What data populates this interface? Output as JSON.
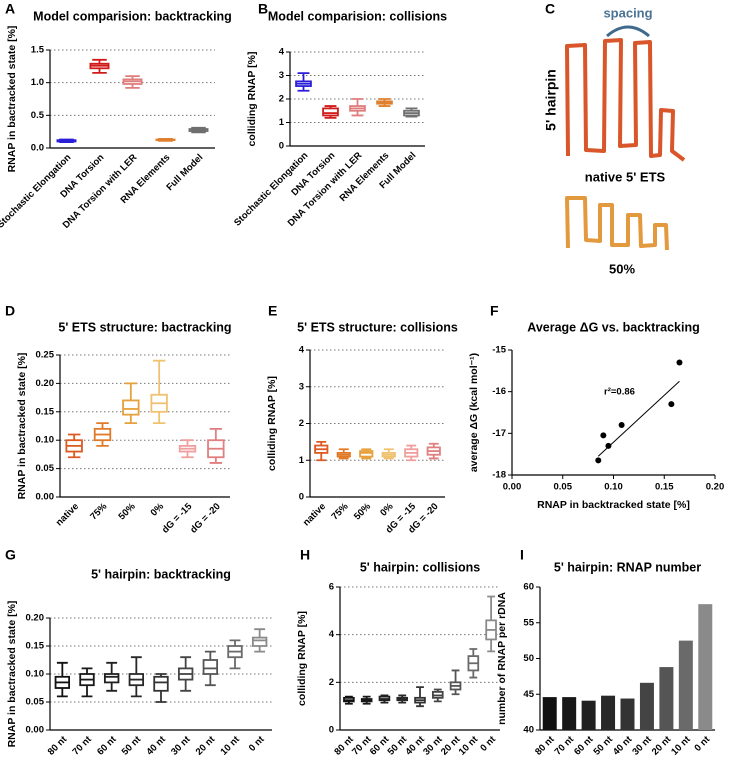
{
  "chart_data": [
    {
      "type": "box",
      "panel": "A",
      "title": "Model comparision: backtracking",
      "y_label": "RNAP in bactracked state [%]",
      "categories": [
        "Stochastic Elongation",
        "DNA Torsion",
        "DNA Torsion with LER",
        "RNA Elements",
        "Full Model"
      ],
      "colors": [
        "#2b1ed8",
        "#d11b1b",
        "#e07d7d",
        "#e0802e",
        "#6f6f6f"
      ],
      "boxes": [
        {
          "min": 0.09,
          "q1": 0.1,
          "median": 0.11,
          "q3": 0.12,
          "max": 0.13
        },
        {
          "min": 1.15,
          "q1": 1.22,
          "median": 1.26,
          "q3": 1.29,
          "max": 1.35
        },
        {
          "min": 0.92,
          "q1": 0.98,
          "median": 1.02,
          "q3": 1.05,
          "max": 1.1
        },
        {
          "min": 0.11,
          "q1": 0.12,
          "median": 0.12,
          "q3": 0.13,
          "max": 0.14
        },
        {
          "min": 0.24,
          "q1": 0.26,
          "median": 0.28,
          "q3": 0.29,
          "max": 0.31
        }
      ],
      "ylim": [
        0,
        1.5
      ],
      "yticks": [
        {
          "value": 0,
          "label": "0.0"
        },
        0.5,
        {
          "value": 1,
          "label": "1.0"
        },
        1.5
      ],
      "grid": true
    },
    {
      "type": "box",
      "panel": "B",
      "title": "Model comparision: collisions",
      "y_label": "colliding RNAP [%]",
      "categories": [
        "Stochastic Elongation",
        "DNA Torsion",
        "DNA Torsion with LER",
        "RNA Elements",
        "Full Model"
      ],
      "colors": [
        "#2b1ed8",
        "#d11b1b",
        "#e07d7d",
        "#e0802e",
        "#6f6f6f"
      ],
      "boxes": [
        {
          "min": 2.35,
          "q1": 2.55,
          "median": 2.65,
          "q3": 2.75,
          "max": 3.1
        },
        {
          "min": 1.2,
          "q1": 1.3,
          "median": 1.4,
          "q3": 1.6,
          "max": 1.7
        },
        {
          "min": 1.3,
          "q1": 1.5,
          "median": 1.6,
          "q3": 1.7,
          "max": 2.0
        },
        {
          "min": 1.7,
          "q1": 1.8,
          "median": 1.85,
          "q3": 1.9,
          "max": 2.0
        },
        {
          "min": 1.25,
          "q1": 1.3,
          "median": 1.4,
          "q3": 1.5,
          "max": 1.6
        }
      ],
      "ylim": [
        0,
        4
      ],
      "yticks": [
        0,
        1,
        2,
        3,
        4
      ],
      "grid": true
    },
    {
      "type": "diagram",
      "panel": "C",
      "spacing_label": "spacing",
      "hairpin_label": "5' hairpin",
      "native_label": "native 5' ETS",
      "variant_label": "50%"
    },
    {
      "type": "box",
      "panel": "D",
      "title": "5' ETS structure: bactracking",
      "y_label": "RNAP in bactracked state [%]",
      "categories": [
        "native",
        "75%",
        "50%",
        "0%",
        "dG = -15",
        "dG = -20"
      ],
      "colors": [
        "#dd5a22",
        "#e07a28",
        "#e6a03c",
        "#efc272",
        "#f09e9e",
        "#e07f7f"
      ],
      "boxes": [
        {
          "min": 0.07,
          "q1": 0.08,
          "median": 0.09,
          "q3": 0.1,
          "max": 0.11
        },
        {
          "min": 0.09,
          "q1": 0.1,
          "median": 0.11,
          "q3": 0.12,
          "max": 0.13
        },
        {
          "min": 0.13,
          "q1": 0.145,
          "median": 0.155,
          "q3": 0.17,
          "max": 0.2
        },
        {
          "min": 0.13,
          "q1": 0.15,
          "median": 0.165,
          "q3": 0.18,
          "max": 0.24
        },
        {
          "min": 0.07,
          "q1": 0.08,
          "median": 0.085,
          "q3": 0.09,
          "max": 0.1
        },
        {
          "min": 0.06,
          "q1": 0.07,
          "median": 0.085,
          "q3": 0.1,
          "max": 0.12
        }
      ],
      "ylim": [
        0,
        0.25
      ],
      "yticks": [
        {
          "value": 0,
          "label": "0.00"
        },
        {
          "value": 0.05,
          "label": "0.05"
        },
        {
          "value": 0.1,
          "label": "0.10"
        },
        {
          "value": 0.15,
          "label": "0.15"
        },
        {
          "value": 0.2,
          "label": "0.20"
        },
        {
          "value": 0.25,
          "label": "0.25"
        }
      ],
      "grid": true
    },
    {
      "type": "box",
      "panel": "E",
      "title": "5' ETS structure: collisions",
      "y_label": "colliding RNAP [%]",
      "categories": [
        "native",
        "75%",
        "50%",
        "0%",
        "dG = -15",
        "dG = -20"
      ],
      "colors": [
        "#dd5a22",
        "#e07a28",
        "#e6a03c",
        "#efc272",
        "#f09e9e",
        "#e07f7f"
      ],
      "boxes": [
        {
          "min": 1.0,
          "q1": 1.2,
          "median": 1.3,
          "q3": 1.4,
          "max": 1.5
        },
        {
          "min": 1.05,
          "q1": 1.1,
          "median": 1.15,
          "q3": 1.2,
          "max": 1.3
        },
        {
          "min": 1.05,
          "q1": 1.1,
          "median": 1.2,
          "q3": 1.25,
          "max": 1.3
        },
        {
          "min": 1.05,
          "q1": 1.1,
          "median": 1.15,
          "q3": 1.2,
          "max": 1.3
        },
        {
          "min": 1.0,
          "q1": 1.1,
          "median": 1.2,
          "q3": 1.3,
          "max": 1.4
        },
        {
          "min": 1.05,
          "q1": 1.15,
          "median": 1.25,
          "q3": 1.35,
          "max": 1.45
        }
      ],
      "ylim": [
        0,
        4
      ],
      "yticks": [
        0,
        1,
        2,
        3,
        4
      ],
      "grid": true
    },
    {
      "type": "scatter",
      "panel": "F",
      "title": "Average ΔG vs. backtracking",
      "x_label": "RNAP in backtracked state [%]",
      "y_label": "average ΔG (kcal mol⁻¹)",
      "annotation": "r²=0.86",
      "color": "#000000",
      "x": [
        0.085,
        0.09,
        0.095,
        0.108,
        0.157,
        0.165
      ],
      "values": [
        -17.65,
        -17.05,
        -17.3,
        -16.8,
        -16.3,
        -15.3
      ],
      "fit_line": {
        "x": [
          0.085,
          0.165
        ],
        "y": [
          -17.55,
          -15.75
        ]
      },
      "xlim": [
        0,
        0.2
      ],
      "xticks": [
        {
          "value": 0,
          "label": "0.00"
        },
        {
          "value": 0.05,
          "label": "0.05"
        },
        {
          "value": 0.1,
          "label": "0.10"
        },
        {
          "value": 0.15,
          "label": "0.15"
        },
        {
          "value": 0.2,
          "label": "0.20"
        }
      ],
      "ylim": [
        -18,
        -15
      ],
      "yticks": [
        -18,
        -17,
        -16,
        -15
      ],
      "grid": false
    },
    {
      "type": "box",
      "panel": "G",
      "title": "5' hairpin: backtracking",
      "y_label": "RNAP in bactracked state [%]",
      "categories": [
        "80 nt",
        "70 nt",
        "60 nt",
        "50 nt",
        "40 nt",
        "30 nt",
        "20 nt",
        "10 nt",
        "0 nt"
      ],
      "colors": [
        "#111111",
        "#181818",
        "#202020",
        "#282828",
        "#333333",
        "#444444",
        "#555555",
        "#6a6a6a",
        "#8a8a8a"
      ],
      "boxes": [
        {
          "min": 0.06,
          "q1": 0.075,
          "median": 0.085,
          "q3": 0.095,
          "max": 0.12
        },
        {
          "min": 0.06,
          "q1": 0.08,
          "median": 0.09,
          "q3": 0.1,
          "max": 0.11
        },
        {
          "min": 0.07,
          "q1": 0.085,
          "median": 0.095,
          "q3": 0.1,
          "max": 0.12
        },
        {
          "min": 0.06,
          "q1": 0.08,
          "median": 0.09,
          "q3": 0.1,
          "max": 0.13
        },
        {
          "min": 0.05,
          "q1": 0.07,
          "median": 0.085,
          "q3": 0.095,
          "max": 0.1
        },
        {
          "min": 0.07,
          "q1": 0.09,
          "median": 0.1,
          "q3": 0.11,
          "max": 0.13
        },
        {
          "min": 0.08,
          "q1": 0.1,
          "median": 0.11,
          "q3": 0.125,
          "max": 0.14
        },
        {
          "min": 0.11,
          "q1": 0.13,
          "median": 0.14,
          "q3": 0.15,
          "max": 0.16
        },
        {
          "min": 0.14,
          "q1": 0.15,
          "median": 0.16,
          "q3": 0.165,
          "max": 0.18
        }
      ],
      "ylim": [
        0,
        0.2
      ],
      "yticks": [
        {
          "value": 0,
          "label": "0.00"
        },
        {
          "value": 0.05,
          "label": "0.05"
        },
        {
          "value": 0.1,
          "label": "0.10"
        },
        {
          "value": 0.15,
          "label": "0.15"
        },
        {
          "value": 0.2,
          "label": "0.20"
        }
      ],
      "grid": true
    },
    {
      "type": "box",
      "panel": "H",
      "title": "5' hairpin: collisions",
      "y_label": "colliding RNAP [%]",
      "categories": [
        "80 nt",
        "70 nt",
        "60 nt",
        "50 nt",
        "40 nt",
        "30 nt",
        "20 nt",
        "10 nt",
        "0 nt"
      ],
      "colors": [
        "#111111",
        "#181818",
        "#202020",
        "#282828",
        "#333333",
        "#444444",
        "#555555",
        "#6a6a6a",
        "#8a8a8a"
      ],
      "boxes": [
        {
          "min": 1.1,
          "q1": 1.2,
          "median": 1.25,
          "q3": 1.35,
          "max": 1.4
        },
        {
          "min": 1.1,
          "q1": 1.2,
          "median": 1.25,
          "q3": 1.3,
          "max": 1.4
        },
        {
          "min": 1.15,
          "q1": 1.25,
          "median": 1.3,
          "q3": 1.4,
          "max": 1.45
        },
        {
          "min": 1.15,
          "q1": 1.25,
          "median": 1.3,
          "q3": 1.35,
          "max": 1.45
        },
        {
          "min": 1.0,
          "q1": 1.15,
          "median": 1.25,
          "q3": 1.35,
          "max": 1.8
        },
        {
          "min": 1.2,
          "q1": 1.35,
          "median": 1.45,
          "q3": 1.6,
          "max": 1.7
        },
        {
          "min": 1.5,
          "q1": 1.7,
          "median": 1.85,
          "q3": 2.0,
          "max": 2.5
        },
        {
          "min": 2.2,
          "q1": 2.5,
          "median": 2.8,
          "q3": 3.1,
          "max": 3.4
        },
        {
          "min": 3.3,
          "q1": 3.8,
          "median": 4.2,
          "q3": 4.6,
          "max": 5.6
        }
      ],
      "ylim": [
        0,
        6
      ],
      "yticks": [
        0,
        2,
        4,
        6
      ],
      "grid": true
    },
    {
      "type": "bar",
      "panel": "I",
      "title": "5' hairpin: RNAP number",
      "y_label": "number of RNAP per rDNA",
      "categories": [
        "80 nt",
        "70 nt",
        "60 nt",
        "50 nt",
        "40 nt",
        "30 nt",
        "20 nt",
        "10 nt",
        "0 nt"
      ],
      "colors": [
        "#111111",
        "#181818",
        "#202020",
        "#282828",
        "#333333",
        "#444444",
        "#555555",
        "#6a6a6a",
        "#8a8a8a"
      ],
      "values": [
        44.6,
        44.6,
        44.1,
        44.8,
        44.4,
        46.6,
        48.8,
        52.5,
        57.6
      ],
      "ylim": [
        40,
        60
      ],
      "yticks": [
        40,
        45,
        50,
        55,
        60
      ],
      "grid": false
    }
  ]
}
